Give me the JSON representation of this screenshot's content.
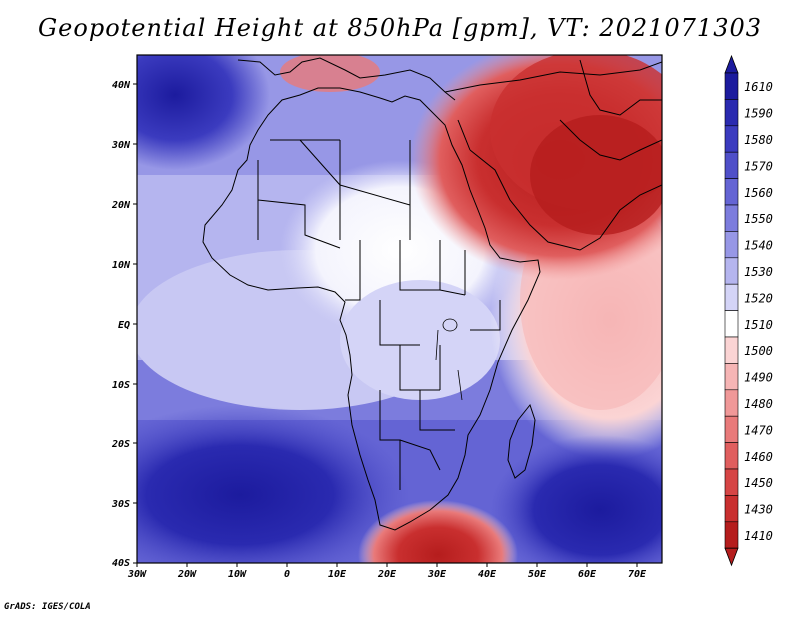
{
  "title": "Geopotential Height at 850hPa [gpm], VT: 2021071303",
  "credit": "GrADS: IGES/COLA",
  "map": {
    "lon_ticks": [
      "30W",
      "20W",
      "10W",
      "0",
      "10E",
      "20E",
      "30E",
      "40E",
      "50E",
      "60E",
      "70E"
    ],
    "lat_ticks": [
      "40N",
      "30N",
      "20N",
      "10N",
      "EQ",
      "10S",
      "20S",
      "30S",
      "40S"
    ],
    "lon_range": [
      -30,
      75
    ],
    "lat_range": [
      -40,
      45
    ]
  },
  "colorbar": {
    "levels": [
      "1610",
      "1590",
      "1580",
      "1570",
      "1560",
      "1550",
      "1540",
      "1530",
      "1520",
      "1510",
      "1500",
      "1490",
      "1480",
      "1470",
      "1460",
      "1450",
      "1430",
      "1410"
    ],
    "colors": [
      "#1c1b9e",
      "#2a2ab0",
      "#3b3bbf",
      "#4f4fc9",
      "#6464d4",
      "#7c7cdd",
      "#9797e6",
      "#b5b5ef",
      "#d4d4f7",
      "#ffffff",
      "#fbd4d4",
      "#f6b5b5",
      "#f09898",
      "#e97a7a",
      "#e05e5e",
      "#d64545",
      "#c92f2f",
      "#b51d1d"
    ]
  }
}
